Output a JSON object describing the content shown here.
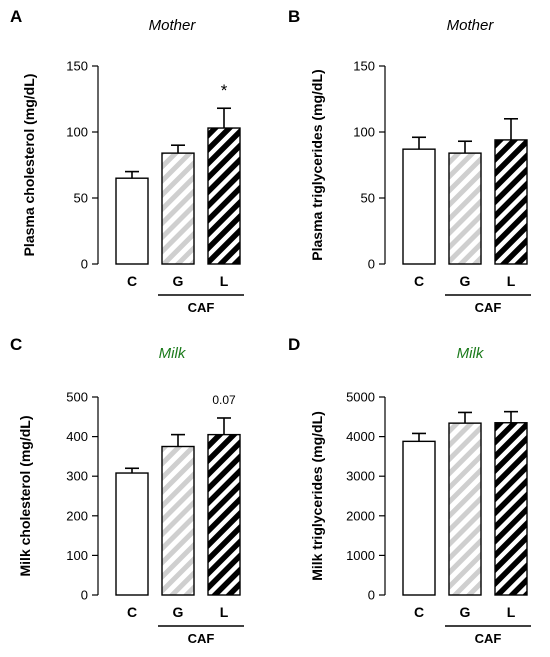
{
  "chart_data": [
    {
      "type": "bar",
      "panel_letter": "A",
      "title": "Mother",
      "title_color": "#000000",
      "ylabel": "Plasma cholesterol (mg/dL)",
      "xlabel": "",
      "ylim": [
        0,
        150
      ],
      "yticks": [
        "0",
        "50",
        "100",
        "150"
      ],
      "ytick_values": [
        0,
        50,
        100,
        150
      ],
      "categories": [
        "C",
        "G",
        "L"
      ],
      "group_label": "CAF",
      "values": [
        65,
        84,
        103
      ],
      "errors": [
        5,
        6,
        15
      ],
      "fills": [
        "white",
        "light-gray-hatch",
        "black-hatch"
      ],
      "annotations": [
        {
          "category_index": 2,
          "text": "*"
        }
      ]
    },
    {
      "type": "bar",
      "panel_letter": "B",
      "title": "Mother",
      "title_color": "#000000",
      "ylabel": "Plasma triglycerides (mg/dL)",
      "xlabel": "",
      "ylim": [
        0,
        150
      ],
      "yticks": [
        "0",
        "50",
        "100",
        "150"
      ],
      "ytick_values": [
        0,
        50,
        100,
        150
      ],
      "categories": [
        "C",
        "G",
        "L"
      ],
      "group_label": "CAF",
      "values": [
        87,
        84,
        94
      ],
      "errors": [
        9,
        9,
        16
      ],
      "fills": [
        "white",
        "light-gray-hatch",
        "black-hatch"
      ],
      "annotations": []
    },
    {
      "type": "bar",
      "panel_letter": "C",
      "title": "Milk",
      "title_color": "#1a7a1a",
      "ylabel": "Milk cholesterol (mg/dL)",
      "xlabel": "",
      "ylim": [
        0,
        500
      ],
      "yticks": [
        "0",
        "100",
        "200",
        "300",
        "400",
        "500"
      ],
      "ytick_values": [
        0,
        100,
        200,
        300,
        400,
        500
      ],
      "categories": [
        "C",
        "G",
        "L"
      ],
      "group_label": "CAF",
      "values": [
        308,
        375,
        405
      ],
      "errors": [
        12,
        30,
        42
      ],
      "fills": [
        "white",
        "light-gray-hatch",
        "black-hatch"
      ],
      "annotations": [
        {
          "category_index": 2,
          "text": "0.07"
        }
      ]
    },
    {
      "type": "bar",
      "panel_letter": "D",
      "title": "Milk",
      "title_color": "#1a7a1a",
      "ylabel": "Milk triglycerides (mg/dL)",
      "xlabel": "",
      "ylim": [
        0,
        5000
      ],
      "yticks": [
        "0",
        "1000",
        "2000",
        "3000",
        "4000",
        "5000"
      ],
      "ytick_values": [
        0,
        1000,
        2000,
        3000,
        4000,
        5000
      ],
      "categories": [
        "C",
        "G",
        "L"
      ],
      "group_label": "CAF",
      "values": [
        3880,
        4340,
        4350
      ],
      "errors": [
        200,
        270,
        280
      ],
      "fills": [
        "white",
        "light-gray-hatch",
        "black-hatch"
      ],
      "annotations": []
    }
  ]
}
